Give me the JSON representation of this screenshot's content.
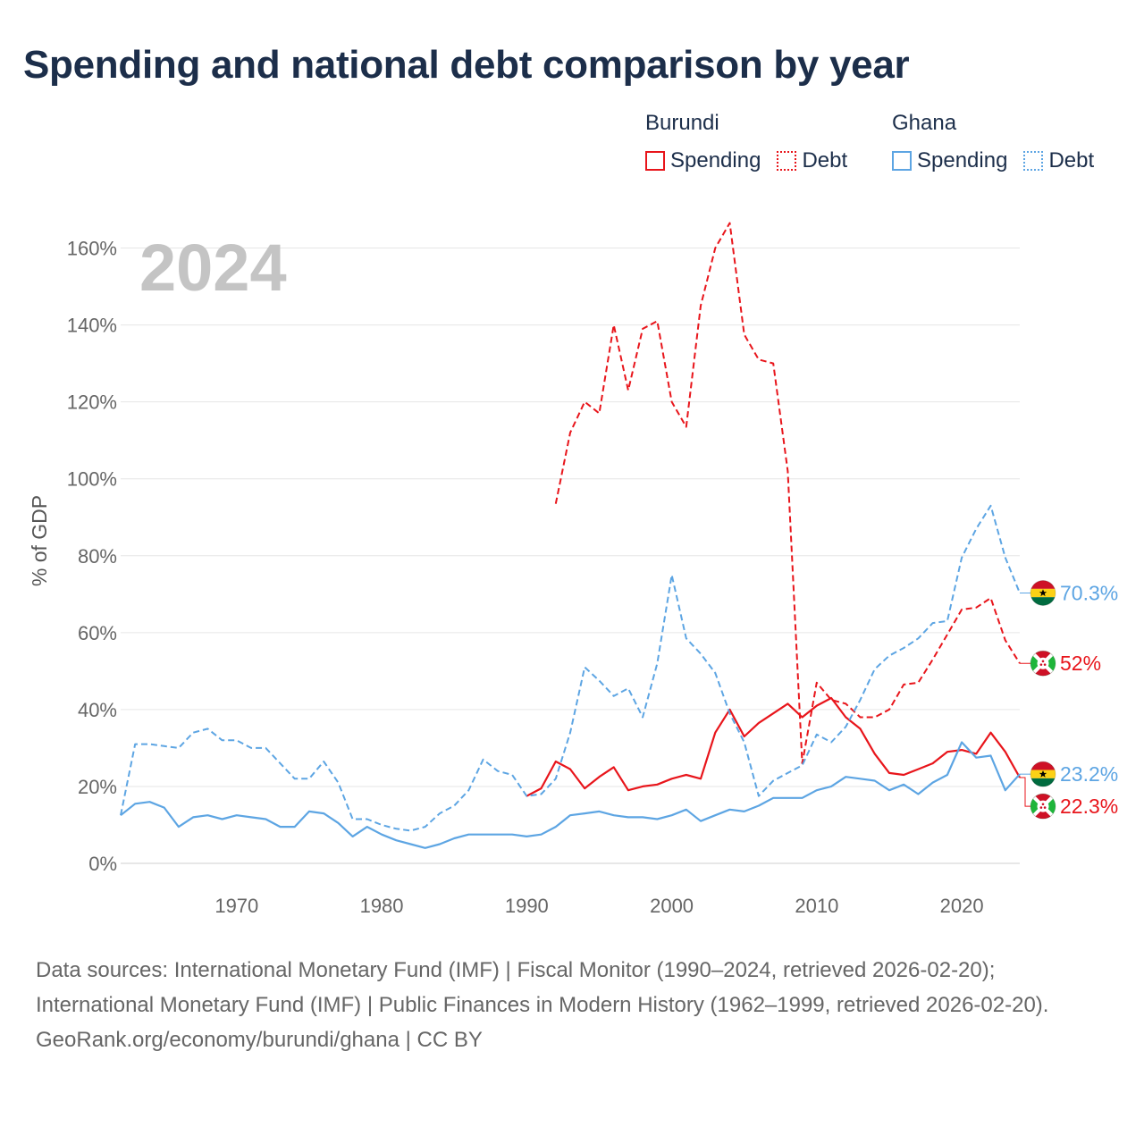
{
  "title": "Spending and national debt comparison by year",
  "legend": {
    "groups": [
      {
        "name": "Burundi",
        "color": "#e8151b",
        "items": [
          "Spending",
          "Debt"
        ]
      },
      {
        "name": "Ghana",
        "color": "#5da5e3",
        "items": [
          "Spending",
          "Debt"
        ]
      }
    ]
  },
  "footer": {
    "sources": "Data sources: International Monetary Fund (IMF) | Fiscal Monitor (1990–2024, retrieved 2026-02-20); International Monetary Fund (IMF) | Public Finances in Modern History (1962–1999, retrieved 2026-02-20).",
    "credit": "GeoRank.org/economy/burundi/ghana | CC BY"
  },
  "chart_data": {
    "type": "line",
    "year_label": "2024",
    "ylabel": "% of GDP",
    "xlabel": "",
    "xlim": [
      1962,
      2024
    ],
    "ylim": [
      0,
      165
    ],
    "yticks": [
      0,
      20,
      40,
      60,
      80,
      100,
      120,
      140,
      160
    ],
    "ytick_labels": [
      "0%",
      "20%",
      "40%",
      "60%",
      "80%",
      "100%",
      "120%",
      "140%",
      "160%"
    ],
    "xticks": [
      1970,
      1980,
      1990,
      2000,
      2010,
      2020
    ],
    "xtick_labels": [
      "1970",
      "1980",
      "1990",
      "2000",
      "2010",
      "2020"
    ],
    "series": [
      {
        "name": "Burundi Spending",
        "country": "Burundi",
        "metric": "Spending",
        "color": "#e8151b",
        "dash": false,
        "end_label": "22.3%",
        "flag": "burundi",
        "x": [
          1990,
          1991,
          1992,
          1993,
          1994,
          1995,
          1996,
          1997,
          1998,
          1999,
          2000,
          2001,
          2002,
          2003,
          2004,
          2005,
          2006,
          2007,
          2008,
          2009,
          2010,
          2011,
          2012,
          2013,
          2014,
          2015,
          2016,
          2017,
          2018,
          2019,
          2020,
          2021,
          2022,
          2023,
          2024
        ],
        "values": [
          17.5,
          19.5,
          26.5,
          24.5,
          19.5,
          22.5,
          25,
          19,
          20,
          20.5,
          22,
          23,
          22,
          34,
          40,
          33,
          36.5,
          39,
          41.5,
          38,
          41,
          43,
          38,
          35,
          28.5,
          23.5,
          23,
          24.5,
          26,
          29,
          29.5,
          28.5,
          34,
          29,
          22.3
        ]
      },
      {
        "name": "Burundi Debt",
        "country": "Burundi",
        "metric": "Debt",
        "color": "#e8151b",
        "dash": true,
        "end_label": "52%",
        "flag": "burundi",
        "x": [
          1992,
          1993,
          1994,
          1995,
          1996,
          1997,
          1998,
          1999,
          2000,
          2001,
          2002,
          2003,
          2004,
          2005,
          2006,
          2007,
          2008,
          2009,
          2010,
          2011,
          2012,
          2013,
          2014,
          2015,
          2016,
          2017,
          2018,
          2019,
          2020,
          2021,
          2022,
          2023,
          2024
        ],
        "values": [
          93.5,
          112,
          120,
          117,
          140,
          123,
          139,
          141,
          120,
          113.5,
          145,
          160,
          166.5,
          137.5,
          131,
          130,
          102,
          26,
          47,
          42.5,
          41.5,
          38,
          38,
          40,
          46.5,
          47,
          53,
          59.5,
          66,
          66.5,
          69,
          58,
          52
        ]
      },
      {
        "name": "Ghana Spending",
        "country": "Ghana",
        "metric": "Spending",
        "color": "#5da5e3",
        "dash": false,
        "end_label": "23.2%",
        "flag": "ghana",
        "x": [
          1962,
          1963,
          1964,
          1965,
          1966,
          1967,
          1968,
          1969,
          1970,
          1971,
          1972,
          1973,
          1974,
          1975,
          1976,
          1977,
          1978,
          1979,
          1980,
          1981,
          1982,
          1983,
          1984,
          1985,
          1986,
          1987,
          1988,
          1989,
          1990,
          1991,
          1992,
          1993,
          1994,
          1995,
          1996,
          1997,
          1998,
          1999,
          2000,
          2001,
          2002,
          2003,
          2004,
          2005,
          2006,
          2007,
          2008,
          2009,
          2010,
          2011,
          2012,
          2013,
          2014,
          2015,
          2016,
          2017,
          2018,
          2019,
          2020,
          2021,
          2022,
          2023,
          2024
        ],
        "values": [
          12.5,
          15.5,
          16,
          14.5,
          9.5,
          12,
          12.5,
          11.5,
          12.5,
          12,
          11.5,
          9.5,
          9.5,
          13.5,
          13,
          10.5,
          7,
          9.5,
          7.5,
          6,
          5,
          4,
          5,
          6.5,
          7.5,
          7.5,
          7.5,
          7.5,
          7,
          7.5,
          9.5,
          12.5,
          13,
          13.5,
          12.5,
          12,
          12,
          11.5,
          12.5,
          14,
          11,
          12.5,
          14,
          13.5,
          15,
          17,
          17,
          17,
          19,
          20,
          22.5,
          22,
          21.5,
          19,
          20.5,
          18,
          21,
          23,
          31.5,
          27.5,
          28,
          19,
          23.2
        ]
      },
      {
        "name": "Ghana Debt",
        "country": "Ghana",
        "metric": "Debt",
        "color": "#5da5e3",
        "dash": true,
        "end_label": "70.3%",
        "flag": "ghana",
        "x": [
          1962,
          1963,
          1964,
          1965,
          1966,
          1967,
          1968,
          1969,
          1970,
          1971,
          1972,
          1973,
          1974,
          1975,
          1976,
          1977,
          1978,
          1979,
          1980,
          1981,
          1982,
          1983,
          1984,
          1985,
          1986,
          1987,
          1988,
          1989,
          1990,
          1991,
          1992,
          1993,
          1994,
          1995,
          1996,
          1997,
          1998,
          1999,
          2000,
          2001,
          2002,
          2003,
          2004,
          2005,
          2006,
          2007,
          2008,
          2009,
          2010,
          2011,
          2012,
          2013,
          2014,
          2015,
          2016,
          2017,
          2018,
          2019,
          2020,
          2021,
          2022,
          2023,
          2024
        ],
        "values": [
          12.5,
          31,
          31,
          30.5,
          30,
          34,
          35,
          32,
          32,
          30,
          30,
          26,
          22,
          22,
          26.5,
          21,
          11.5,
          11.5,
          10,
          9,
          8.5,
          9.5,
          13,
          15,
          19,
          27,
          24,
          23,
          17.5,
          18,
          22,
          34,
          51,
          47.5,
          43.5,
          45.5,
          38,
          52,
          75,
          58.5,
          54.5,
          49.5,
          39,
          31.5,
          17.5,
          21.5,
          23.5,
          25.5,
          33.5,
          31.5,
          35.5,
          42.5,
          50.5,
          54,
          56,
          58.5,
          62.5,
          63,
          79.5,
          87,
          93,
          79.5,
          70.3
        ]
      }
    ]
  }
}
